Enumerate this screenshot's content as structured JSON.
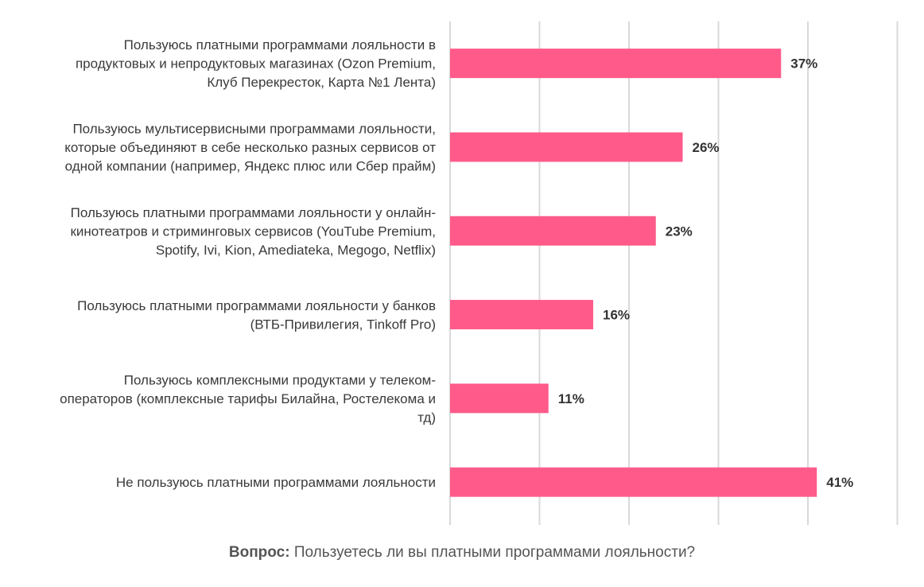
{
  "chart_data": {
    "type": "bar",
    "orientation": "horizontal",
    "categories": [
      [
        "Пользуюсь платными программами лояльности в",
        "продуктовых и непродуктовых магазинах  (Ozon Premium,",
        "Клуб Перекресток, Карта №1 Лента)"
      ],
      [
        "Пользуюсь мультисервисными программами лояльности,",
        "которые объединяют в себе несколько разных сервисов от",
        "одной компании (например, Яндекс плюс или Сбер прайм)"
      ],
      [
        "Пользуюсь платными программами лояльности у онлайн-",
        "кинотеатров и стриминговых сервисов (YouTube Premium,",
        "Spotify,  Ivi, Kion, Amediateka, Megogo, Netflix)"
      ],
      [
        "Пользуюсь платными программами лояльности у банков",
        "(ВТБ-Привилегия, Tinkoff Pro)"
      ],
      [
        "Пользуюсь комплексными продуктами у телеком-",
        "операторов (комплексные тарифы Билайна, Ростелекома и",
        "тд)"
      ],
      [
        "Не пользуюсь платными программами лояльности"
      ]
    ],
    "values": [
      37,
      26,
      23,
      16,
      11,
      41
    ],
    "value_labels": [
      "37%",
      "26%",
      "23%",
      "16%",
      "11%",
      "41%"
    ],
    "xlim": [
      0,
      50
    ],
    "grid": true,
    "gridline_values": [
      0,
      10,
      20,
      30,
      40,
      50
    ],
    "bar_color": "#ff5a8a",
    "title": "",
    "xlabel": "",
    "ylabel": ""
  },
  "footer": {
    "prefix": "Вопрос:",
    "text": " Пользуетесь ли вы платными программами лояльности?"
  },
  "colors": {
    "bar": "#ff5a8a",
    "grid": "#d9d9d9",
    "label_text": "#3a3a3a",
    "value_text": "#333333"
  }
}
